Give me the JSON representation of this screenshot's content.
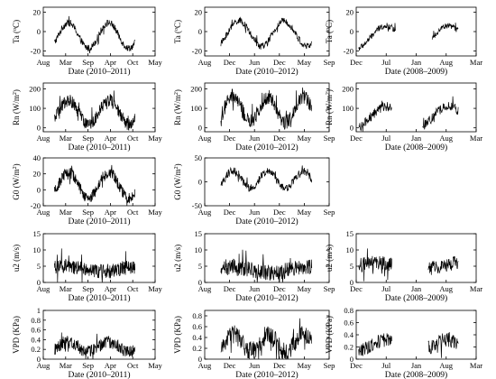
{
  "chart_data": [
    {
      "id": "p00",
      "type": "line",
      "xlabel": "Date (2010–2011)",
      "ylabel": "Ta (°C)",
      "ylabel_main": "Ta (",
      "ylabel_sup": "o",
      "ylabel_tail": "C)",
      "xticks": [
        "Aug",
        "Mar",
        "Sep",
        "Apr",
        "Oct",
        "May"
      ],
      "yticks": [
        -20,
        0,
        20
      ],
      "ylim": [
        -25,
        25
      ],
      "series": {
        "shape": "sine",
        "start": 0.1,
        "end": 0.82,
        "center": -4,
        "amp": 13,
        "cycles": 2,
        "phase": -0.1,
        "noise": 3.5,
        "gaps": []
      }
    },
    {
      "id": "p01",
      "type": "line",
      "xlabel": "Date (2010–2012)",
      "ylabel": "Ta (°C)",
      "ylabel_main": "Ta (",
      "ylabel_sup": "o",
      "ylabel_tail": "C)",
      "xticks": [
        "Aug",
        "Dec",
        "Jun",
        "Dec",
        "May",
        "Sep"
      ],
      "yticks": [
        -20,
        0,
        20
      ],
      "ylim": [
        -25,
        25
      ],
      "series": {
        "shape": "sine",
        "start": 0.13,
        "end": 0.86,
        "center": -2,
        "amp": 13,
        "cycles": 2,
        "phase": -0.15,
        "noise": 3.5,
        "gaps": []
      }
    },
    {
      "id": "p02",
      "type": "line",
      "xlabel": "Date (2008–2009)",
      "ylabel": "Ta (°C)",
      "ylabel_main": "Ta (",
      "ylabel_sup": "o",
      "ylabel_tail": "C)",
      "xticks": [
        "Dec",
        "Jul",
        "Jan",
        "Aug",
        "Mar"
      ],
      "yticks": [
        -20,
        0,
        20
      ],
      "ylim": [
        -25,
        25
      ],
      "series": {
        "shape": "sine",
        "start": 0.02,
        "end": 0.85,
        "center": -6,
        "amp": 12,
        "cycles": 1.6,
        "phase": -0.2,
        "noise": 3,
        "gaps": [
          [
            0.33,
            0.63
          ]
        ]
      }
    },
    {
      "id": "p10",
      "type": "line",
      "xlabel": "Date (2010–2011)",
      "ylabel": "Rn (W/m²)",
      "ylabel_main": "Rn (W/m",
      "ylabel_sup": "2",
      "ylabel_tail": ")",
      "xticks": [
        "Aug",
        "Mar",
        "Sep",
        "Apr",
        "Oct",
        "May"
      ],
      "yticks": [
        0,
        100,
        200
      ],
      "ylim": [
        -20,
        230
      ],
      "series": {
        "shape": "sine",
        "start": 0.1,
        "end": 0.82,
        "center": 80,
        "amp": 60,
        "cycles": 2,
        "phase": -0.1,
        "noise": 32,
        "gaps": []
      }
    },
    {
      "id": "p11",
      "type": "line",
      "xlabel": "Date (2010–2012)",
      "ylabel": "Rn (W/m²)",
      "ylabel_main": "Rn (W/m",
      "ylabel_sup": "2",
      "ylabel_tail": ")",
      "xticks": [
        "Aug",
        "Dec",
        "Jun",
        "Dec",
        "May",
        "Sep"
      ],
      "yticks": [
        0,
        100,
        200
      ],
      "ylim": [
        -20,
        230
      ],
      "series": {
        "shape": "sine",
        "start": 0.13,
        "end": 0.86,
        "center": 95,
        "amp": 65,
        "cycles": 2.6,
        "phase": -0.1,
        "noise": 40,
        "gaps": []
      }
    },
    {
      "id": "p12",
      "type": "line",
      "xlabel": "Date (2008–2009)",
      "ylabel": "Rn (W/m²)",
      "ylabel_main": "Rn (W/m",
      "ylabel_sup": "2",
      "ylabel_tail": ")",
      "xticks": [
        "Dec",
        "Jul",
        "Jan",
        "Aug",
        "Mar"
      ],
      "yticks": [
        0,
        100,
        200
      ],
      "ylim": [
        -20,
        230
      ],
      "series": {
        "shape": "sine",
        "start": 0.02,
        "end": 0.85,
        "center": 55,
        "amp": 55,
        "cycles": 1.6,
        "phase": -0.2,
        "noise": 25,
        "gaps": [
          [
            0.3,
            0.55
          ]
        ]
      }
    },
    {
      "id": "p20",
      "type": "line",
      "xlabel": "Date (2010–2011)",
      "ylabel": "G0 (W/m²)",
      "ylabel_main": "G0 (W/m",
      "ylabel_sup": "2",
      "ylabel_tail": ")",
      "xticks": [
        "Aug",
        "Mar",
        "Sep",
        "Apr",
        "Oct",
        "May"
      ],
      "yticks": [
        -20,
        0,
        20,
        40
      ],
      "ylim": [
        -20,
        40
      ],
      "series": {
        "shape": "sine",
        "start": 0.1,
        "end": 0.82,
        "center": 6,
        "amp": 16,
        "cycles": 2,
        "phase": -0.1,
        "noise": 7,
        "gaps": []
      }
    },
    {
      "id": "p21",
      "type": "line",
      "xlabel": "Date (2010–2012)",
      "ylabel": "G0 (W/m²)",
      "ylabel_main": "G0 (W/m",
      "ylabel_sup": "2",
      "ylabel_tail": ")",
      "xticks": [
        "Aug",
        "Dec",
        "Jun",
        "Dec",
        "May",
        "Sep"
      ],
      "yticks": [
        -50,
        0,
        50
      ],
      "ylim": [
        -50,
        50
      ],
      "series": {
        "shape": "sine",
        "start": 0.13,
        "end": 0.86,
        "center": 5,
        "amp": 18,
        "cycles": 2.6,
        "phase": -0.1,
        "noise": 8,
        "gaps": []
      }
    },
    {
      "id": "p30",
      "type": "line",
      "xlabel": "Date (2010–2011)",
      "ylabel": "u2 (m/s)",
      "ylabel_main": "u2 (m/s)",
      "ylabel_sup": "",
      "ylabel_tail": "",
      "xticks": [
        "Aug",
        "Mar",
        "Sep",
        "Apr",
        "Oct",
        "May"
      ],
      "yticks": [
        0,
        5,
        10,
        15
      ],
      "ylim": [
        0,
        15
      ],
      "series": {
        "shape": "noise",
        "start": 0.1,
        "end": 0.82,
        "center": 4.2,
        "amp": 0.8,
        "cycles": 2,
        "phase": 0,
        "noise": 2.2,
        "gaps": []
      }
    },
    {
      "id": "p31",
      "type": "line",
      "xlabel": "Date (2010–2012)",
      "ylabel": "u2 (m/s)",
      "ylabel_main": "u2 (m/s)",
      "ylabel_sup": "",
      "ylabel_tail": "",
      "xticks": [
        "Aug",
        "Dec",
        "Jun",
        "Dec",
        "May",
        "Sep"
      ],
      "yticks": [
        0,
        5,
        10,
        15
      ],
      "ylim": [
        0,
        15
      ],
      "series": {
        "shape": "noise",
        "start": 0.13,
        "end": 0.86,
        "center": 4,
        "amp": 1,
        "cycles": 2.6,
        "phase": 0,
        "noise": 2.5,
        "gaps": []
      }
    },
    {
      "id": "p32",
      "type": "line",
      "xlabel": "Date (2008–2009)",
      "ylabel": "u2 (m/s)",
      "ylabel_main": "u2 (m/s)",
      "ylabel_sup": "",
      "ylabel_tail": "",
      "xticks": [
        "Dec",
        "Jul",
        "Jan",
        "Aug",
        "Mar"
      ],
      "yticks": [
        0,
        5,
        10,
        15
      ],
      "ylim": [
        0,
        15
      ],
      "series": {
        "shape": "noise",
        "start": 0.02,
        "end": 0.85,
        "center": 5,
        "amp": 1,
        "cycles": 1.6,
        "phase": 0,
        "noise": 2.2,
        "gaps": [
          [
            0.3,
            0.6
          ]
        ]
      }
    },
    {
      "id": "p40",
      "type": "line",
      "xlabel": "Date (2010–2011)",
      "ylabel": "VPD (KPa)",
      "ylabel_main": "VPD (KPa)",
      "ylabel_sup": "",
      "ylabel_tail": "",
      "xticks": [
        "Aug",
        "Mar",
        "Sep",
        "Apr",
        "Oct",
        "May"
      ],
      "yticks": [
        0,
        0.2,
        0.4,
        0.6,
        0.8,
        1
      ],
      "ylim": [
        0,
        1
      ],
      "series": {
        "shape": "sine",
        "start": 0.1,
        "end": 0.82,
        "center": 0.25,
        "amp": 0.1,
        "cycles": 2,
        "phase": -0.1,
        "noise": 0.13,
        "gaps": []
      }
    },
    {
      "id": "p41",
      "type": "line",
      "xlabel": "Date (2010–2012)",
      "ylabel": "VPD (KPa)",
      "ylabel_main": "VPD (KPa)",
      "ylabel_sup": "",
      "ylabel_tail": "",
      "xticks": [
        "Aug",
        "Dec",
        "Jun",
        "Dec",
        "May",
        "Sep"
      ],
      "yticks": [
        0,
        0.2,
        0.4,
        0.6,
        0.8
      ],
      "ylim": [
        0,
        0.9
      ],
      "series": {
        "shape": "sine",
        "start": 0.13,
        "end": 0.86,
        "center": 0.3,
        "amp": 0.15,
        "cycles": 2.6,
        "phase": -0.1,
        "noise": 0.18,
        "gaps": []
      }
    },
    {
      "id": "p42",
      "type": "line",
      "xlabel": "Date (2008–2009)",
      "ylabel": "VPD (KPa)",
      "ylabel_main": "VPD (KPa)",
      "ylabel_sup": "",
      "ylabel_tail": "",
      "xticks": [
        "Dec",
        "Jul",
        "Jan",
        "Aug",
        "Mar"
      ],
      "yticks": [
        0,
        0.2,
        0.4,
        0.6,
        0.8
      ],
      "ylim": [
        0,
        0.8
      ],
      "series": {
        "shape": "sine",
        "start": 0.02,
        "end": 0.85,
        "center": 0.22,
        "amp": 0.1,
        "cycles": 1.6,
        "phase": -0.2,
        "noise": 0.12,
        "gaps": [
          [
            0.3,
            0.6
          ]
        ]
      }
    }
  ]
}
